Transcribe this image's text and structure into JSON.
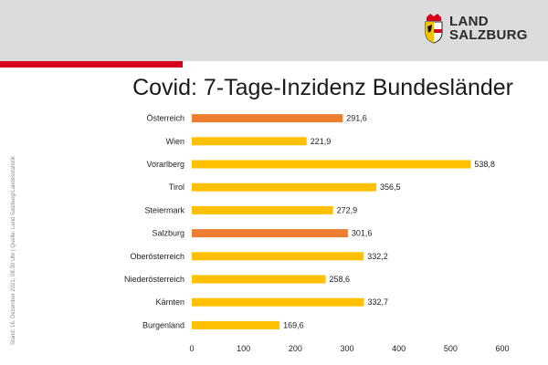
{
  "header": {
    "logo_line1": "LAND",
    "logo_line2": "SALZBURG",
    "band_color": "#dcdcdc",
    "accent_color": "#d6001c"
  },
  "footnote": "Stand: 16. Dezember 2021, 08.30 Uhr | Quelle: Land Salzburg/Landesstatistik",
  "chart_data": {
    "type": "bar",
    "orientation": "horizontal",
    "title": "Covid: 7-Tage-Inzidenz Bundesländer",
    "xlabel": "",
    "ylabel": "",
    "xlim": [
      0,
      600
    ],
    "ticks": [
      0,
      100,
      200,
      300,
      400,
      500,
      600
    ],
    "grid": false,
    "categories": [
      "Österreich",
      "Wien",
      "Vorarlberg",
      "Tirol",
      "Steiermark",
      "Salzburg",
      "Oberösterreich",
      "Niederösterreich",
      "Kärnten",
      "Burgenland"
    ],
    "values": [
      291.6,
      221.9,
      538.8,
      356.5,
      272.9,
      301.6,
      332.2,
      258.6,
      332.7,
      169.6
    ],
    "value_labels": [
      "291,6",
      "221,9",
      "538,8",
      "356,5",
      "272,9",
      "301,6",
      "332,2",
      "258,6",
      "332,7",
      "169,6"
    ],
    "highlight": [
      "Österreich",
      "Salzburg"
    ],
    "colors": {
      "default": "#ffc000",
      "highlight": "#ed7d31"
    }
  }
}
